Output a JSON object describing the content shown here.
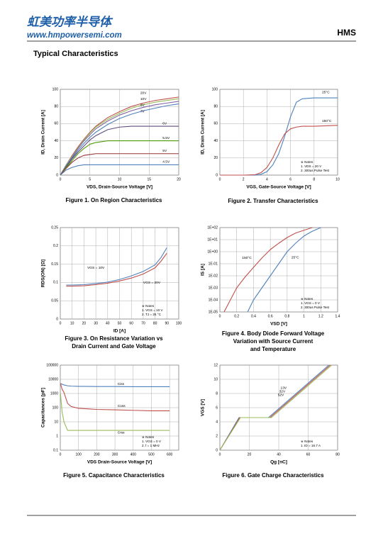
{
  "header": {
    "logo": "虹美功率半导体",
    "url": "www.hmpowersemi.com",
    "brand": "HMS"
  },
  "section_title": "Typical Characteristics",
  "chart_data": [
    {
      "type": "line",
      "caption": [
        "Figure 1. On Region Characteristics"
      ],
      "xlabel": "VDS, Drain-Source Voltage  [V]",
      "ylabel": "ID, Drain Current  [A]",
      "x": [
        0,
        1,
        2,
        3,
        4,
        5,
        6,
        8,
        10,
        12,
        14,
        16,
        18,
        20
      ],
      "xlim": [
        0,
        20
      ],
      "xticks": [
        0,
        5,
        10,
        15,
        20
      ],
      "ylim": [
        0,
        100
      ],
      "yticks": [
        0,
        20,
        40,
        60,
        80,
        100
      ],
      "grid": true,
      "series": [
        {
          "name": "20V",
          "color": "#c0504d",
          "values": [
            0,
            12,
            23,
            33,
            42,
            50,
            57,
            67,
            74,
            80,
            84,
            87,
            89,
            91
          ]
        },
        {
          "name": "10V",
          "color": "#9bbb59",
          "values": [
            0,
            12,
            22,
            32,
            41,
            49,
            56,
            65,
            72,
            78,
            82,
            85,
            87,
            89
          ]
        },
        {
          "name": "8V",
          "color": "#8064a2",
          "values": [
            0,
            11,
            21,
            31,
            40,
            47,
            54,
            63,
            70,
            75,
            79,
            82,
            84,
            86
          ]
        },
        {
          "name": "7V",
          "color": "#4f81bd",
          "values": [
            0,
            11,
            20,
            29,
            37,
            44,
            50,
            59,
            66,
            71,
            75,
            78,
            81,
            83
          ]
        },
        {
          "name": "6V",
          "color": "#604a7b",
          "values": [
            0,
            10,
            19,
            27,
            34,
            41,
            46,
            53,
            56,
            57,
            57,
            57,
            57,
            57
          ]
        },
        {
          "name": "5.5V",
          "color": "#4e9a06",
          "values": [
            0,
            9,
            17,
            25,
            31,
            36,
            38,
            40,
            40,
            40,
            40,
            40,
            40,
            40
          ]
        },
        {
          "name": "5V",
          "color": "#953735",
          "values": [
            0,
            8,
            15,
            20,
            23,
            24,
            25,
            25,
            25,
            25,
            25,
            25,
            25,
            25
          ]
        },
        {
          "name": "4.5V",
          "color": "#4f81bd",
          "values": [
            0,
            6,
            9,
            11,
            12,
            12,
            12,
            12,
            12,
            12,
            12,
            12,
            12,
            12
          ]
        }
      ]
    },
    {
      "type": "line",
      "caption": [
        "Figure 2. Transfer Characteristics"
      ],
      "xlabel": "VGS, Gate-Source Voltage [V]",
      "ylabel": "ID, Drain Current [A]",
      "x": [
        0,
        2,
        3,
        3.5,
        4,
        4.5,
        5,
        5.5,
        6,
        6.5,
        7,
        8,
        10
      ],
      "xlim": [
        0,
        10
      ],
      "xticks": [
        0,
        2,
        4,
        6,
        8,
        10
      ],
      "ylim": [
        0,
        100
      ],
      "yticks": [
        0,
        20,
        40,
        60,
        80,
        100
      ],
      "grid": true,
      "notes": [
        "※ Notes",
        "1. VDS = 20 V",
        "2. 300us Pulse Test"
      ],
      "series": [
        {
          "name": "25°C",
          "color": "#4f81bd",
          "values": [
            0,
            0,
            0,
            1,
            4,
            12,
            25,
            45,
            68,
            85,
            89,
            90,
            90
          ]
        },
        {
          "name": "150°C",
          "color": "#c0504d",
          "values": [
            0,
            0,
            0.5,
            3,
            9,
            20,
            35,
            48,
            54,
            56,
            57,
            57,
            58
          ]
        }
      ]
    },
    {
      "type": "line",
      "caption": [
        "Figure 3. On Resistance Variation vs",
        "Drain Current and Gate Voltage"
      ],
      "xlabel": "ID [A]",
      "ylabel": "RDS(ON) [Ω]",
      "x": [
        5,
        10,
        20,
        30,
        40,
        50,
        60,
        70,
        80,
        85,
        90
      ],
      "xlim": [
        0,
        100
      ],
      "xticks": [
        0,
        10,
        20,
        30,
        40,
        50,
        60,
        70,
        80,
        90,
        100
      ],
      "ylim": [
        0,
        0.25
      ],
      "yticks": [
        0,
        0.05,
        0.1,
        0.15,
        0.2,
        0.25
      ],
      "grid": true,
      "notes": [
        "※ Notes",
        "1. VGS = 10 V",
        "2. TJ = 25 °C"
      ],
      "series": [
        {
          "name": "VGS = 10V",
          "color": "#4f81bd",
          "values": [
            0.093,
            0.093,
            0.094,
            0.097,
            0.101,
            0.108,
            0.118,
            0.13,
            0.148,
            0.168,
            0.195
          ]
        },
        {
          "name": "VGS = 20V",
          "color": "#c0504d",
          "values": [
            0.09,
            0.09,
            0.091,
            0.094,
            0.098,
            0.104,
            0.112,
            0.123,
            0.14,
            0.158,
            0.18
          ]
        }
      ]
    },
    {
      "type": "line",
      "caption": [
        "Figure 4. Body Diode Forward Voltage",
        "Variation with Source Current",
        "and Temperature"
      ],
      "xlabel": "VSD [V]",
      "ylabel": "IS [A]",
      "xlim": [
        0,
        1.4
      ],
      "xticks": [
        0,
        0.2,
        0.4,
        0.6,
        0.8,
        1,
        1.2,
        1.4
      ],
      "yscale": "log",
      "ylim": [
        1e-05,
        100
      ],
      "yticks": [
        {
          "value": 1e-05,
          "label": "1E-05"
        },
        {
          "value": 0.0001,
          "label": "1E-04"
        },
        {
          "value": 0.001,
          "label": "1E-03"
        },
        {
          "value": 0.01,
          "label": "1E-02"
        },
        {
          "value": 0.1,
          "label": "1E-01"
        },
        {
          "value": 1,
          "label": "1E+00"
        },
        {
          "value": 10,
          "label": "1E+01"
        },
        {
          "value": 100,
          "label": "1E+02"
        }
      ],
      "grid": true,
      "notes": [
        "※ Notes",
        "1. VGS = 0 V",
        "2. 300us Pulse Test"
      ],
      "series": [
        {
          "name": "150°C",
          "color": "#c0504d",
          "x": [
            0.05,
            0.2,
            0.3,
            0.4,
            0.5,
            0.6,
            0.7,
            0.8,
            0.9,
            1,
            1.1
          ],
          "values": [
            1e-05,
            0.001,
            0.008,
            0.05,
            0.3,
            1.5,
            5,
            15,
            35,
            60,
            100
          ]
        },
        {
          "name": "25°C",
          "color": "#4f81bd",
          "x": [
            0.33,
            0.4,
            0.5,
            0.6,
            0.7,
            0.8,
            0.9,
            1,
            1.1,
            1.2
          ],
          "values": [
            1e-05,
            0.0001,
            0.001,
            0.01,
            0.1,
            1,
            5,
            20,
            50,
            100
          ]
        }
      ]
    },
    {
      "type": "line",
      "caption": [
        "Figure 5. Capacitance Characteristics"
      ],
      "xlabel": "VDS Drain-Source Voltage [V]",
      "ylabel": "Capacitances [pF]",
      "x": [
        1,
        10,
        20,
        40,
        60,
        100,
        200,
        300,
        400,
        500,
        600
      ],
      "xlim": [
        0,
        650
      ],
      "xticks": [
        0,
        100,
        200,
        300,
        400,
        500,
        600
      ],
      "yscale": "log",
      "ylim": [
        0.1,
        100000
      ],
      "yticks": [
        0.1,
        1,
        10,
        100,
        1000,
        10000,
        100000
      ],
      "grid": true,
      "notes": [
        "※ Notes",
        "1. VGS = 0 V",
        "2. f = 1 MHz"
      ],
      "series": [
        {
          "name": "Ciss",
          "color": "#4f81bd",
          "values": [
            5000,
            4500,
            4000,
            3500,
            3300,
            3200,
            3100,
            3100,
            3000,
            3000,
            3000
          ]
        },
        {
          "name": "Coss",
          "color": "#c0504d",
          "values": [
            5000,
            2000,
            1200,
            200,
            120,
            90,
            75,
            70,
            65,
            60,
            60
          ]
        },
        {
          "name": "Crss",
          "color": "#9bbb59",
          "values": [
            1000,
            50,
            10,
            2.5,
            2.5,
            2.5,
            2.5,
            2.5,
            2.5,
            2.5,
            2.5
          ]
        }
      ]
    },
    {
      "type": "line",
      "caption": [
        "Figure 6. Gate Charge Characteristics"
      ],
      "xlabel": "Qg [nC]",
      "ylabel": "VGS [V]",
      "xlim": [
        0,
        80
      ],
      "xticks": [
        0,
        20,
        40,
        60,
        80
      ],
      "ylim": [
        0,
        12
      ],
      "yticks": [
        0,
        2,
        4,
        6,
        8,
        10,
        12
      ],
      "grid": true,
      "notes": [
        "※ Notes",
        "1. ID = 16.7 A"
      ],
      "series": [
        {
          "name": "13V",
          "color": "#4f81bd",
          "x": [
            0,
            13,
            33,
            74
          ],
          "values": [
            0,
            4.6,
            4.6,
            12
          ]
        },
        {
          "name": "32V",
          "color": "#c0504d",
          "x": [
            0,
            13.5,
            34,
            75
          ],
          "values": [
            0,
            4.6,
            4.6,
            12
          ]
        },
        {
          "name": "52V",
          "color": "#9bbb59",
          "x": [
            0,
            14,
            35,
            76
          ],
          "values": [
            0,
            4.6,
            4.6,
            12
          ]
        }
      ]
    }
  ]
}
